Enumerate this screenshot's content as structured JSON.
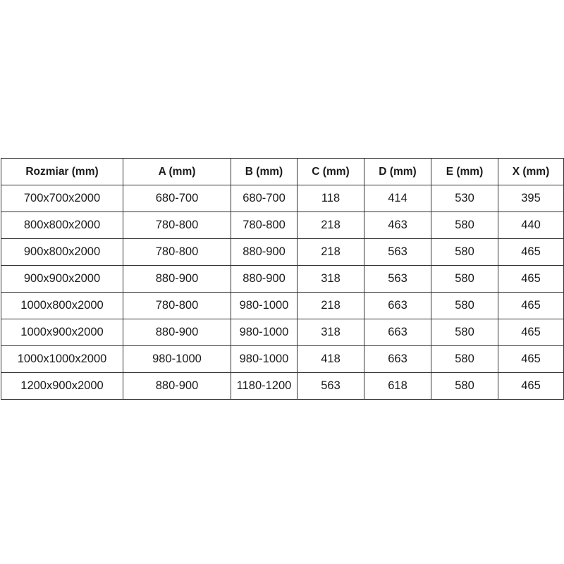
{
  "table": {
    "headers": [
      "Rozmiar (mm)",
      "A (mm)",
      "B (mm)",
      "C (mm)",
      "D (mm)",
      "E (mm)",
      "X (mm)"
    ],
    "rows": [
      [
        "700x700x2000",
        "680-700",
        "680-700",
        "118",
        "414",
        "530",
        "395"
      ],
      [
        "800x800x2000",
        "780-800",
        "780-800",
        "218",
        "463",
        "580",
        "440"
      ],
      [
        "900x800x2000",
        "780-800",
        "880-900",
        "218",
        "563",
        "580",
        "465"
      ],
      [
        "900x900x2000",
        "880-900",
        "880-900",
        "318",
        "563",
        "580",
        "465"
      ],
      [
        "1000x800x2000",
        "780-800",
        "980-1000",
        "218",
        "663",
        "580",
        "465"
      ],
      [
        "1000x900x2000",
        "880-900",
        "980-1000",
        "318",
        "663",
        "580",
        "465"
      ],
      [
        "1000x1000x2000",
        "980-1000",
        "980-1000",
        "418",
        "663",
        "580",
        "465"
      ],
      [
        "1200x900x2000",
        "880-900",
        "1180-1200",
        "563",
        "618",
        "580",
        "465"
      ]
    ]
  }
}
